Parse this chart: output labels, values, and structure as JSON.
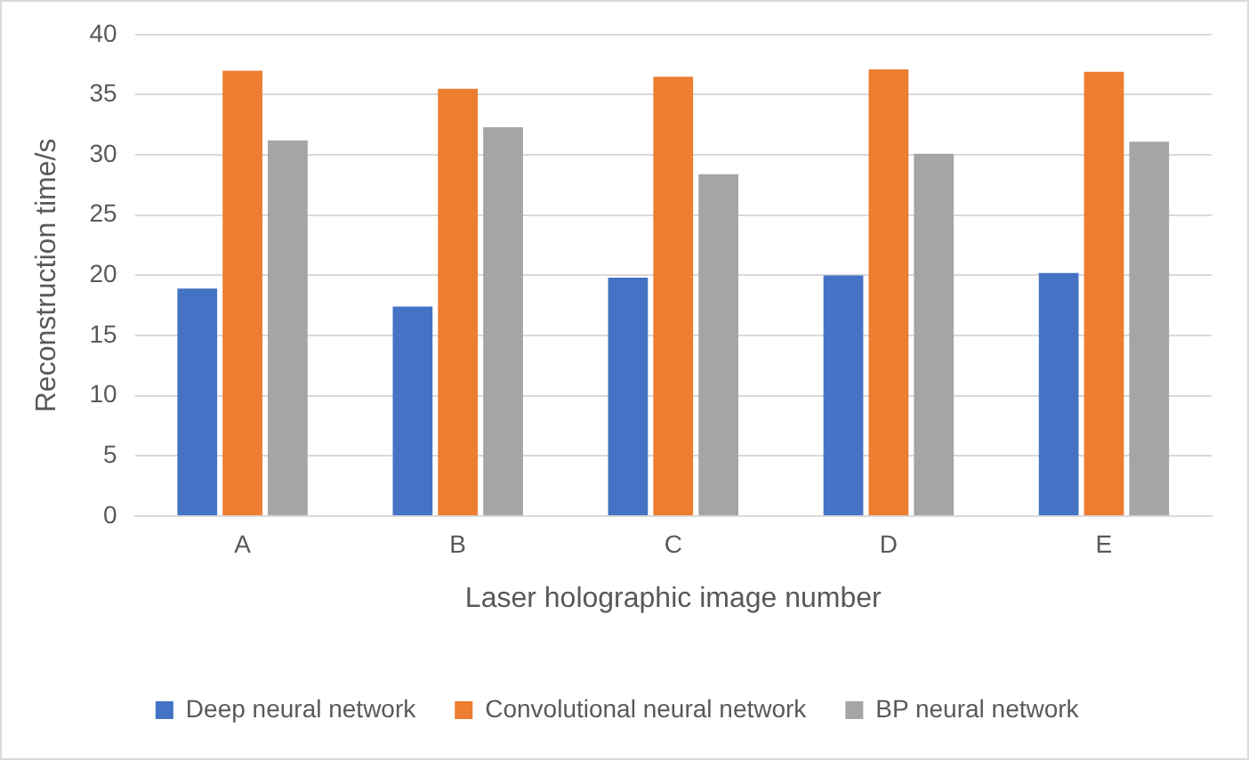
{
  "chart_data": {
    "type": "bar",
    "xlabel": "Laser holographic image number",
    "ylabel": "Reconstruction time/s",
    "categories": [
      "A",
      "B",
      "C",
      "D",
      "E"
    ],
    "series": [
      {
        "name": "Deep neural network",
        "color": "#4472c4",
        "values": [
          18.9,
          17.4,
          19.8,
          20.0,
          20.2
        ]
      },
      {
        "name": "Convolutional neural network",
        "color": "#ed7d31",
        "values": [
          37.0,
          35.5,
          36.5,
          37.1,
          36.9
        ]
      },
      {
        "name": "BP neural network",
        "color": "#a5a5a5",
        "values": [
          31.2,
          32.3,
          28.4,
          30.1,
          31.1
        ]
      }
    ],
    "ylim": [
      0,
      40
    ],
    "yticks": [
      0,
      5,
      10,
      15,
      20,
      25,
      30,
      35,
      40
    ],
    "grid": "y",
    "legend": "bottom"
  }
}
